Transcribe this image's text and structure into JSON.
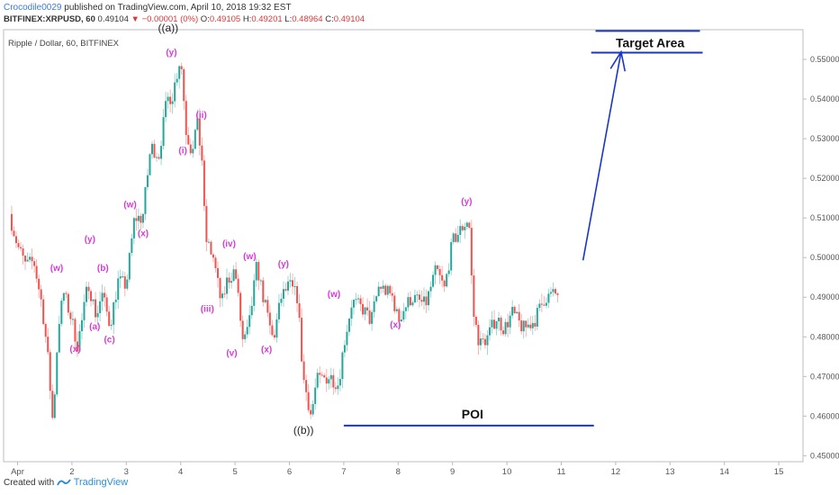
{
  "header": {
    "author": "Crocodile0029",
    "published_on": "published on TradingView.com, April 10, 2018 19:32 EST",
    "symbol": "BITFINEX:XRPUSD, 60",
    "price": "0.49104",
    "change": "−0.00001 (0%)",
    "o_label": "O:",
    "o_value": "0.49105",
    "h_label": "H:",
    "h_value": "0.49201",
    "l_label": "L:",
    "l_value": "0.48964",
    "c_label": "C:",
    "c_value": "0.49104"
  },
  "footer": {
    "created_with": "Created with",
    "brand": "TradingView"
  },
  "chart_data": {
    "type": "candlestick",
    "title": "Ripple / Dollar, 60, BITFINEX",
    "x_ticks": [
      "Apr",
      "2",
      "3",
      "4",
      "5",
      "6",
      "7",
      "8",
      "9",
      "10",
      "11",
      "12",
      "13",
      "14",
      "15"
    ],
    "x_domain": [
      0.85,
      15.0
    ],
    "y_ticks": [
      "0.45000",
      "0.46000",
      "0.47000",
      "0.48000",
      "0.49000",
      "0.50000",
      "0.51000",
      "0.52000",
      "0.53000",
      "0.54000",
      "0.55000"
    ],
    "ylim": [
      0.4485,
      0.5575
    ],
    "price_path": [
      [
        0.85,
        0.511
      ],
      [
        1.0,
        0.503
      ],
      [
        1.15,
        0.498
      ],
      [
        1.3,
        0.499
      ],
      [
        1.45,
        0.488
      ],
      [
        1.55,
        0.476
      ],
      [
        1.65,
        0.458
      ],
      [
        1.75,
        0.483
      ],
      [
        1.85,
        0.491
      ],
      [
        2.0,
        0.484
      ],
      [
        2.1,
        0.478
      ],
      [
        2.2,
        0.485
      ],
      [
        2.3,
        0.494
      ],
      [
        2.45,
        0.485
      ],
      [
        2.55,
        0.491
      ],
      [
        2.7,
        0.483
      ],
      [
        2.85,
        0.494
      ],
      [
        3.0,
        0.493
      ],
      [
        3.15,
        0.51
      ],
      [
        3.3,
        0.51
      ],
      [
        3.45,
        0.528
      ],
      [
        3.6,
        0.526
      ],
      [
        3.75,
        0.54
      ],
      [
        3.85,
        0.541
      ],
      [
        4.0,
        0.551
      ],
      [
        4.1,
        0.532
      ],
      [
        4.2,
        0.527
      ],
      [
        4.3,
        0.534
      ],
      [
        4.4,
        0.524
      ],
      [
        4.45,
        0.505
      ],
      [
        4.6,
        0.5
      ],
      [
        4.75,
        0.488
      ],
      [
        4.85,
        0.494
      ],
      [
        5.0,
        0.497
      ],
      [
        5.15,
        0.478
      ],
      [
        5.25,
        0.482
      ],
      [
        5.4,
        0.498
      ],
      [
        5.55,
        0.488
      ],
      [
        5.7,
        0.479
      ],
      [
        5.85,
        0.49
      ],
      [
        6.0,
        0.493
      ],
      [
        6.15,
        0.49
      ],
      [
        6.25,
        0.47
      ],
      [
        6.4,
        0.46
      ],
      [
        6.5,
        0.469
      ],
      [
        6.75,
        0.47
      ],
      [
        6.9,
        0.468
      ],
      [
        7.0,
        0.478
      ],
      [
        7.15,
        0.489
      ],
      [
        7.35,
        0.487
      ],
      [
        7.5,
        0.484
      ],
      [
        7.65,
        0.493
      ],
      [
        7.9,
        0.49
      ],
      [
        8.0,
        0.484
      ],
      [
        8.1,
        0.487
      ],
      [
        8.25,
        0.49
      ],
      [
        8.5,
        0.488
      ],
      [
        8.7,
        0.497
      ],
      [
        8.85,
        0.492
      ],
      [
        9.0,
        0.504
      ],
      [
        9.15,
        0.507
      ],
      [
        9.3,
        0.51
      ],
      [
        9.38,
        0.486
      ],
      [
        9.5,
        0.478
      ],
      [
        9.65,
        0.48
      ],
      [
        9.8,
        0.485
      ],
      [
        9.95,
        0.482
      ],
      [
        10.1,
        0.486
      ],
      [
        10.3,
        0.482
      ],
      [
        10.5,
        0.484
      ],
      [
        10.7,
        0.49
      ],
      [
        10.95,
        0.491
      ]
    ],
    "annotations": [
      {
        "label": "(w)",
        "x": 1.72,
        "y": 0.4966,
        "color": "#d63bd6"
      },
      {
        "label": "(y)",
        "x": 2.33,
        "y": 0.5039,
        "color": "#d63bd6"
      },
      {
        "label": "(x)",
        "x": 2.06,
        "y": 0.4762,
        "color": "#d63bd6"
      },
      {
        "label": "(b)",
        "x": 2.57,
        "y": 0.4966,
        "color": "#d63bd6"
      },
      {
        "label": "(a)",
        "x": 2.42,
        "y": 0.4819,
        "color": "#d63bd6"
      },
      {
        "label": "(c)",
        "x": 2.69,
        "y": 0.4786,
        "color": "#d63bd6"
      },
      {
        "label": "(w)",
        "x": 3.07,
        "y": 0.5127,
        "color": "#d63bd6"
      },
      {
        "label": "(x)",
        "x": 3.31,
        "y": 0.5054,
        "color": "#d63bd6"
      },
      {
        "label": "((a))",
        "x": 3.77,
        "y": 0.557,
        "color": "#222222"
      },
      {
        "label": "(y)",
        "x": 3.83,
        "y": 0.551,
        "color": "#d63bd6"
      },
      {
        "label": "(ii)",
        "x": 4.38,
        "y": 0.5353,
        "color": "#d63bd6"
      },
      {
        "label": "(i)",
        "x": 4.04,
        "y": 0.5263,
        "color": "#d63bd6"
      },
      {
        "label": "(iv)",
        "x": 4.89,
        "y": 0.5028,
        "color": "#d63bd6"
      },
      {
        "label": "(w)",
        "x": 5.27,
        "y": 0.4996,
        "color": "#d63bd6"
      },
      {
        "label": "(iii)",
        "x": 4.49,
        "y": 0.4863,
        "color": "#d63bd6"
      },
      {
        "label": "(v)",
        "x": 4.94,
        "y": 0.4752,
        "color": "#d63bd6"
      },
      {
        "label": "(x)",
        "x": 5.58,
        "y": 0.4761,
        "color": "#d63bd6"
      },
      {
        "label": "(y)",
        "x": 5.89,
        "y": 0.4977,
        "color": "#d63bd6"
      },
      {
        "label": "((b))",
        "x": 6.26,
        "y": 0.4555,
        "color": "#222222"
      },
      {
        "label": "(w)",
        "x": 6.82,
        "y": 0.49,
        "color": "#d63bd6"
      },
      {
        "label": "(x)",
        "x": 7.95,
        "y": 0.4823,
        "color": "#d63bd6"
      },
      {
        "label": "(y)",
        "x": 9.26,
        "y": 0.5134,
        "color": "#d63bd6"
      }
    ],
    "target_area": {
      "label": "Target Area",
      "y_top": 0.5572,
      "y_bottom": 0.5517,
      "x_start": 11.55,
      "x_end": 13.55
    },
    "poi": {
      "label": "POI",
      "y": 0.4576,
      "x_start": 7.0,
      "x_end": 11.6
    },
    "projection_arrow": {
      "from": [
        11.4,
        0.4993
      ],
      "to": [
        12.1,
        0.5519
      ]
    },
    "colors": {
      "up": "#26a69a",
      "down": "#ef5350",
      "wave_labels": "#d63bd6",
      "drawing": "#1a35c9"
    }
  }
}
